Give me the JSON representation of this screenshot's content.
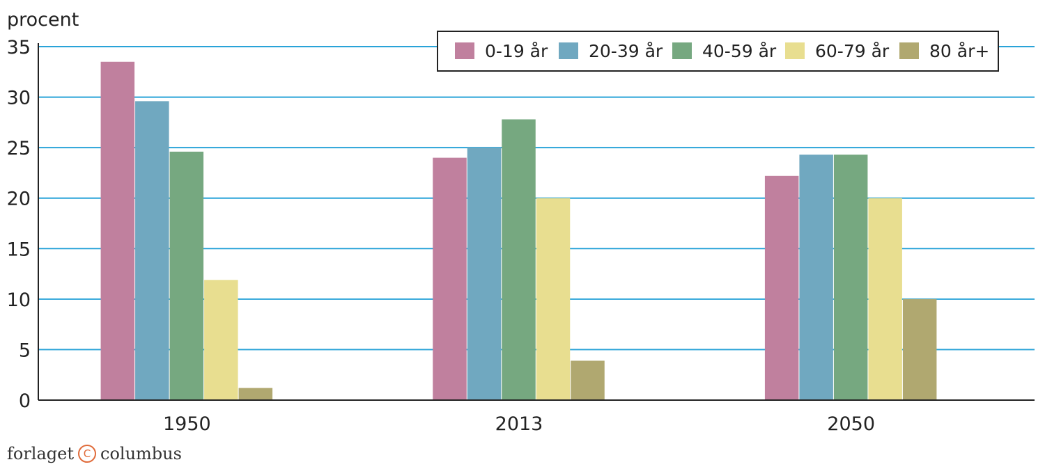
{
  "chart_data": {
    "type": "bar",
    "ylabel": "procent",
    "ylim": [
      0,
      35
    ],
    "yticks": [
      0,
      5,
      10,
      15,
      20,
      25,
      30,
      35
    ],
    "grid": true,
    "legend_position": "top-right",
    "categories": [
      "1950",
      "2013",
      "2050"
    ],
    "series": [
      {
        "name": "0-19 år",
        "color": "#c0809e",
        "values": [
          33.5,
          24.0,
          22.2
        ]
      },
      {
        "name": "20-39 år",
        "color": "#70a8c0",
        "values": [
          29.6,
          25.0,
          24.3
        ]
      },
      {
        "name": "40-59 år",
        "color": "#76a880",
        "values": [
          24.6,
          27.8,
          24.3
        ]
      },
      {
        "name": "60-79 år",
        "color": "#e8de90",
        "values": [
          11.9,
          20.0,
          20.0
        ]
      },
      {
        "name": "80 år+",
        "color": "#b0a870",
        "values": [
          1.2,
          3.9,
          10.0
        ]
      }
    ]
  },
  "credit": {
    "left": "forlaget",
    "logo": "C",
    "right": "columbus"
  },
  "colors": {
    "gridline": "#29a3d8",
    "axis": "#222222"
  }
}
